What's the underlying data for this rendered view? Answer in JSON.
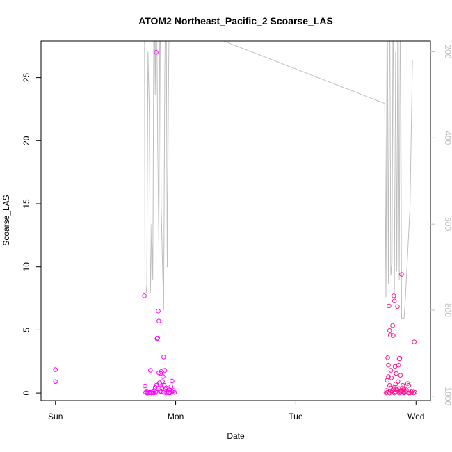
{
  "chart_data": {
    "type": "scatter",
    "title": "ATOM2 Northeast_Pacific_2 Scoarse_LAS",
    "xlabel": "Date",
    "ylabel": "Scoarse_LAS",
    "x_ticks": [
      {
        "label": "Sun",
        "day": 0
      },
      {
        "label": "Mon",
        "day": 1
      },
      {
        "label": "Tue",
        "day": 2
      },
      {
        "label": "Wed",
        "day": 3
      }
    ],
    "xlim_days": [
      -0.12,
      3.12
    ],
    "ylim": [
      -0.6,
      27.9
    ],
    "y_ticks": [
      0,
      5,
      10,
      15,
      20,
      25
    ],
    "y2_ticks": [
      200,
      400,
      600,
      800,
      1000
    ],
    "y2lim": [
      1010,
      175
    ],
    "grid": false,
    "colors": {
      "points_day1": "#ff00ff",
      "points_day3": "#ff1493",
      "depth_line": "#bebebe",
      "axis": "#000000",
      "right_axis": "#bebebe"
    },
    "series": [
      {
        "name": "",
        "kind": "points",
        "color": "#ff00ff",
        "points": [
          [
            0.0,
            1.85
          ],
          [
            0.0,
            0.9
          ],
          [
            0.74,
            7.7
          ],
          [
            0.745,
            0.55
          ],
          [
            0.75,
            0.05
          ],
          [
            0.76,
            0.1
          ],
          [
            0.77,
            0.0
          ],
          [
            0.78,
            0.05
          ],
          [
            0.79,
            1.8
          ],
          [
            0.8,
            0.05
          ],
          [
            0.81,
            0.1
          ],
          [
            0.82,
            0.2
          ],
          [
            0.83,
            0.45
          ],
          [
            0.84,
            0.6
          ],
          [
            0.845,
            4.3
          ],
          [
            0.85,
            4.35
          ],
          [
            0.86,
            1.6
          ],
          [
            0.865,
            0.8
          ],
          [
            0.87,
            0.7
          ],
          [
            0.875,
            1.55
          ],
          [
            0.88,
            1.7
          ],
          [
            0.885,
            0.35
          ],
          [
            0.89,
            0.9
          ],
          [
            0.895,
            1.3
          ],
          [
            0.9,
            2.85
          ],
          [
            0.905,
            0.6
          ],
          [
            0.91,
            1.8
          ],
          [
            0.915,
            0.3
          ],
          [
            0.92,
            0.4
          ],
          [
            0.93,
            0.1
          ],
          [
            0.94,
            0.05
          ],
          [
            0.95,
            0.25
          ],
          [
            0.96,
            0.5
          ],
          [
            0.97,
            0.95
          ],
          [
            0.98,
            0.2
          ],
          [
            0.99,
            0.05
          ],
          [
            0.855,
            6.5
          ],
          [
            0.86,
            5.7
          ],
          [
            0.838,
            27.0
          ],
          [
            0.79,
            0.05
          ],
          [
            0.82,
            0.0
          ],
          [
            0.845,
            0.05
          ],
          [
            0.87,
            0.15
          ],
          [
            0.9,
            0.05
          ],
          [
            0.92,
            0.0
          ],
          [
            0.95,
            0.0
          ],
          [
            0.97,
            0.1
          ],
          [
            0.76,
            0.0
          ],
          [
            0.8,
            0.0
          ],
          [
            0.835,
            0.1
          ],
          [
            0.88,
            0.1
          ]
        ]
      },
      {
        "name": "",
        "kind": "points",
        "color": "#ff1493",
        "points": [
          [
            2.75,
            0.0
          ],
          [
            2.755,
            0.2
          ],
          [
            2.76,
            0.05
          ],
          [
            2.765,
            2.8
          ],
          [
            2.77,
            2.2
          ],
          [
            2.775,
            6.9
          ],
          [
            2.78,
            4.95
          ],
          [
            2.785,
            4.6
          ],
          [
            2.79,
            1.8
          ],
          [
            2.795,
            1.2
          ],
          [
            2.8,
            0.05
          ],
          [
            2.805,
            5.35
          ],
          [
            2.81,
            4.55
          ],
          [
            2.815,
            7.7
          ],
          [
            2.82,
            7.3
          ],
          [
            2.825,
            2.1
          ],
          [
            2.83,
            0.1
          ],
          [
            2.835,
            1.55
          ],
          [
            2.84,
            0.3
          ],
          [
            2.845,
            6.85
          ],
          [
            2.85,
            0.9
          ],
          [
            2.855,
            2.2
          ],
          [
            2.86,
            2.7
          ],
          [
            2.865,
            2.75
          ],
          [
            2.87,
            1.4
          ],
          [
            2.875,
            0.2
          ],
          [
            2.88,
            9.4
          ],
          [
            2.885,
            0.4
          ],
          [
            2.89,
            0.6
          ],
          [
            2.9,
            0.05
          ],
          [
            2.91,
            0.1
          ],
          [
            2.92,
            0.25
          ],
          [
            2.93,
            0.75
          ],
          [
            2.94,
            0.6
          ],
          [
            2.95,
            0.0
          ],
          [
            2.96,
            0.1
          ],
          [
            2.97,
            0.15
          ],
          [
            2.985,
            4.05
          ],
          [
            2.99,
            0.05
          ],
          [
            2.76,
            1.0
          ],
          [
            2.77,
            1.3
          ],
          [
            2.78,
            0.6
          ],
          [
            2.79,
            0.4
          ],
          [
            2.8,
            0.15
          ],
          [
            2.81,
            0.3
          ],
          [
            2.82,
            0.45
          ],
          [
            2.83,
            0.7
          ],
          [
            2.84,
            0.25
          ],
          [
            2.85,
            0.05
          ],
          [
            2.86,
            0.35
          ],
          [
            2.87,
            0.1
          ],
          [
            2.88,
            0.2
          ],
          [
            2.89,
            0.05
          ],
          [
            2.9,
            0.3
          ],
          [
            2.78,
            0.0
          ],
          [
            2.82,
            0.0
          ],
          [
            2.86,
            0.0
          ],
          [
            2.9,
            0.0
          ],
          [
            2.94,
            0.0
          ],
          [
            2.98,
            0.0
          ]
        ]
      },
      {
        "name": "",
        "kind": "line",
        "axis": "right",
        "color": "#bebebe",
        "points": [
          [
            0.74,
            0
          ],
          [
            0.745,
            760
          ],
          [
            0.755,
            760
          ],
          [
            0.76,
            740
          ],
          [
            0.77,
            200
          ],
          [
            0.78,
            330
          ],
          [
            0.79,
            760
          ],
          [
            0.8,
            600
          ],
          [
            0.81,
            730
          ],
          [
            0.82,
            0
          ],
          [
            0.83,
            300
          ],
          [
            0.84,
            0
          ],
          [
            0.85,
            400
          ],
          [
            0.86,
            650
          ],
          [
            0.87,
            0
          ],
          [
            0.88,
            560
          ],
          [
            0.89,
            690
          ],
          [
            0.9,
            800
          ],
          [
            0.91,
            240
          ],
          [
            0.92,
            0
          ],
          [
            0.93,
            700
          ],
          [
            0.94,
            300
          ],
          [
            0.95,
            0
          ],
          [
            1.4,
            175
          ],
          [
            2.74,
            320
          ],
          [
            2.75,
            770
          ],
          [
            2.76,
            0
          ],
          [
            2.77,
            740
          ],
          [
            2.78,
            0
          ],
          [
            2.79,
            720
          ],
          [
            2.8,
            690
          ],
          [
            2.81,
            0
          ],
          [
            2.82,
            760
          ],
          [
            2.83,
            200
          ],
          [
            2.84,
            710
          ],
          [
            2.85,
            0
          ],
          [
            2.86,
            730
          ],
          [
            2.87,
            0
          ],
          [
            2.88,
            820
          ],
          [
            2.9,
            820
          ],
          [
            2.91,
            780
          ],
          [
            2.93,
            670
          ],
          [
            2.95,
            560
          ],
          [
            2.97,
            220
          ]
        ]
      }
    ]
  }
}
